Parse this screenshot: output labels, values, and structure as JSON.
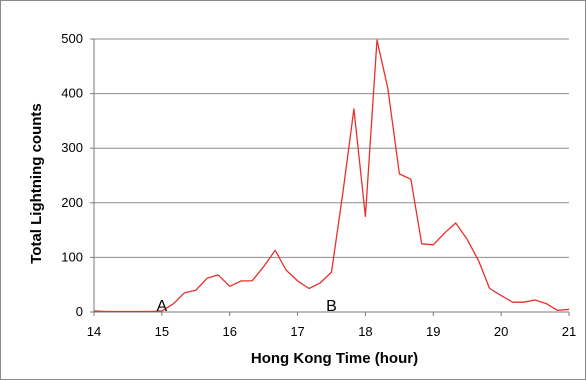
{
  "chart_data": {
    "type": "line",
    "title": "",
    "xlabel": "Hong Kong Time (hour)",
    "ylabel": "Total Lightning counts",
    "xlim": [
      14,
      21
    ],
    "ylim": [
      0,
      500
    ],
    "xticks": [
      14,
      15,
      16,
      17,
      18,
      19,
      20,
      21
    ],
    "yticks": [
      0,
      100,
      200,
      300,
      400,
      500
    ],
    "grid": "horizontal",
    "legend": "none",
    "line_color": "#e8302c",
    "series": [
      {
        "x": [
          14.0,
          14.17,
          14.33,
          14.5,
          14.67,
          14.83,
          15.0,
          15.17,
          15.33,
          15.5,
          15.67,
          15.83,
          16.0,
          16.17,
          16.33,
          16.5,
          16.67,
          16.83,
          17.0,
          17.17,
          17.33,
          17.5,
          17.67,
          17.83,
          18.0,
          18.17,
          18.33,
          18.5,
          18.67,
          18.83,
          19.0,
          19.17,
          19.33,
          19.5,
          19.67,
          19.83,
          20.0,
          20.17,
          20.33,
          20.5,
          20.67,
          20.83,
          21.0
        ],
        "values": [
          2,
          1,
          1,
          1,
          1,
          1,
          2,
          15,
          35,
          40,
          62,
          68,
          47,
          57,
          57,
          83,
          113,
          77,
          57,
          43,
          53,
          73,
          220,
          372,
          175,
          498,
          410,
          253,
          243,
          125,
          123,
          145,
          163,
          133,
          93,
          43,
          30,
          18,
          18,
          22,
          15,
          3,
          5
        ]
      }
    ],
    "annotations": [
      {
        "text": "A",
        "x": 15.0,
        "y": 0
      },
      {
        "text": "B",
        "x": 17.5,
        "y": 0
      }
    ]
  }
}
